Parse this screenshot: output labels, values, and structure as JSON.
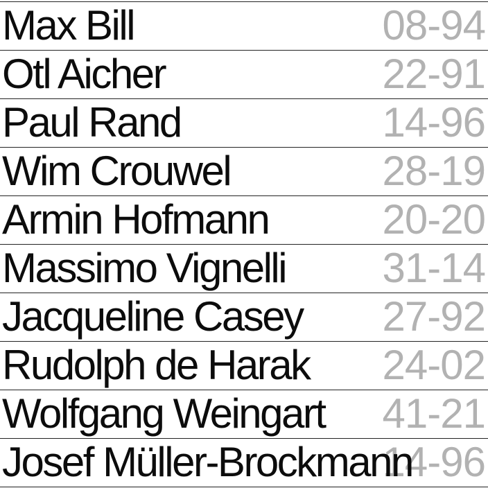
{
  "rows": [
    {
      "name": "Max Bill",
      "years": "08-94"
    },
    {
      "name": "Otl Aicher",
      "years": "22-91"
    },
    {
      "name": "Paul Rand",
      "years": "14-96"
    },
    {
      "name": "Wim Crouwel",
      "years": "28-19"
    },
    {
      "name": "Armin Hofmann",
      "years": "20-20"
    },
    {
      "name": "Massimo Vignelli",
      "years": "31-14"
    },
    {
      "name": "Jacqueline Casey",
      "years": "27-92"
    },
    {
      "name": "Rudolph de Harak",
      "years": "24-02"
    },
    {
      "name": "Wolfgang Weingart",
      "years": "41-21"
    },
    {
      "name": "Josef Müller-Brockmann",
      "years": "14-96"
    }
  ],
  "colors": {
    "name_text": "#0c0c0c",
    "years_text": "#b2b2b2",
    "rule": "#222222",
    "background": "#ffffff"
  }
}
